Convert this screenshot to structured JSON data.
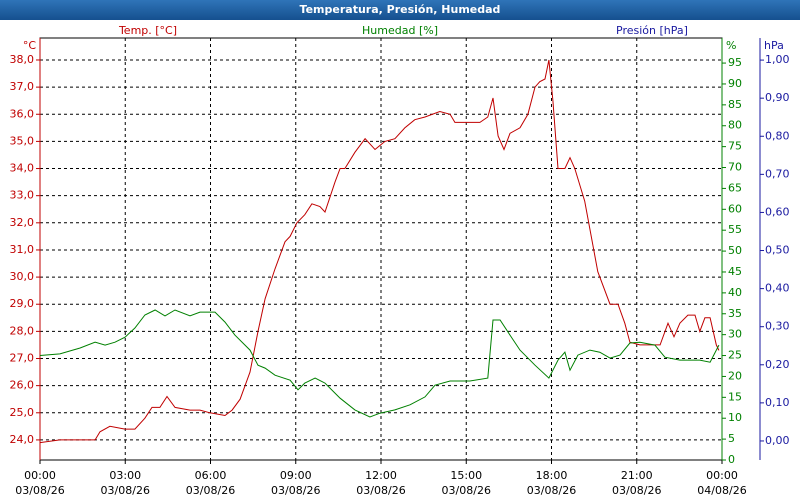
{
  "chart_data": {
    "type": "line",
    "title": "Temperatura, Presión, Humedad",
    "yunit": "°C",
    "y2unit": "%",
    "y3unit": "hPa",
    "y3label": "Presión [hPa]",
    "y3color": "#1a1aa0",
    "xlim": [
      0,
      24
    ],
    "xticks": [
      {
        "value": 0,
        "label": "00:00",
        "date": "03/08/26"
      },
      {
        "value": 3,
        "label": "03:00",
        "date": "03/08/26"
      },
      {
        "value": 6,
        "label": "06:00",
        "date": "03/08/26"
      },
      {
        "value": 9,
        "label": "09:00",
        "date": "03/08/26"
      },
      {
        "value": 12,
        "label": "12:00",
        "date": "03/08/26"
      },
      {
        "value": 15,
        "label": "15:00",
        "date": "03/08/26"
      },
      {
        "value": 18,
        "label": "18:00",
        "date": "03/08/26"
      },
      {
        "value": 21,
        "label": "21:00",
        "date": "03/08/26"
      },
      {
        "value": 24,
        "label": "00:00",
        "date": "04/08/26"
      }
    ],
    "ylim": [
      23.26,
      38.81
    ],
    "yticks": [
      {
        "value": 24,
        "label": "24,0"
      },
      {
        "value": 25,
        "label": "25,0"
      },
      {
        "value": 26,
        "label": "26,0"
      },
      {
        "value": 27,
        "label": "27,0"
      },
      {
        "value": 28,
        "label": "28,0"
      },
      {
        "value": 29,
        "label": "29,0"
      },
      {
        "value": 30,
        "label": "30,0"
      },
      {
        "value": 31,
        "label": "31,0"
      },
      {
        "value": 32,
        "label": "32,0"
      },
      {
        "value": 33,
        "label": "33,0"
      },
      {
        "value": 34,
        "label": "34,0"
      },
      {
        "value": 35,
        "label": "35,0"
      },
      {
        "value": 36,
        "label": "36,0"
      },
      {
        "value": 37,
        "label": "37,0"
      },
      {
        "value": 38,
        "label": "38,0"
      }
    ],
    "y2lim": [
      0,
      101
    ],
    "y2ticks": [
      0,
      5,
      10,
      15,
      20,
      25,
      30,
      35,
      40,
      45,
      50,
      55,
      60,
      65,
      70,
      75,
      80,
      85,
      90,
      95
    ],
    "y3lim": [
      -0.05,
      1.058
    ],
    "y3ticks": [
      {
        "value": 0,
        "label": "0,00"
      },
      {
        "value": 0.1,
        "label": "0,10"
      },
      {
        "value": 0.2,
        "label": "0,20"
      },
      {
        "value": 0.3,
        "label": "0,30"
      },
      {
        "value": 0.4,
        "label": "0,40"
      },
      {
        "value": 0.5,
        "label": "0,50"
      },
      {
        "value": 0.6,
        "label": "0,60"
      },
      {
        "value": 0.7,
        "label": "0,70"
      },
      {
        "value": 0.8,
        "label": "0,80"
      },
      {
        "value": 0.9,
        "label": "0,90"
      },
      {
        "value": 1,
        "label": "1,00"
      }
    ],
    "grid": true,
    "series": [
      {
        "name": "Temp. [°C]",
        "color": "#c00000",
        "axis": "y",
        "x": [
          0,
          0.7,
          1.94,
          2.11,
          2.46,
          2.99,
          3.34,
          3.69,
          3.94,
          4.22,
          4.47,
          4.75,
          5.28,
          5.63,
          5.98,
          6.51,
          6.76,
          7.04,
          7.39,
          7.67,
          7.92,
          8.27,
          8.62,
          8.8,
          9.04,
          9.32,
          9.57,
          9.85,
          10.03,
          10.38,
          10.56,
          10.73,
          11.08,
          11.44,
          11.79,
          12.14,
          12.49,
          12.84,
          13.19,
          13.55,
          14.07,
          14.43,
          14.6,
          15.13,
          15.48,
          15.76,
          15.94,
          16.12,
          16.33,
          16.54,
          16.89,
          17.17,
          17.42,
          17.59,
          17.77,
          17.91,
          18.05,
          18.23,
          18.47,
          18.65,
          18.82,
          19.17,
          19.63,
          20.06,
          20.34,
          20.58,
          20.76,
          21.11,
          21.46,
          21.82,
          22.1,
          22.31,
          22.52,
          22.8,
          23.05,
          23.22,
          23.4,
          23.58,
          23.8,
          23.89
        ],
        "values": [
          23.9,
          24.0,
          24.0,
          24.3,
          24.5,
          24.4,
          24.4,
          24.8,
          25.2,
          25.2,
          25.6,
          25.2,
          25.1,
          25.1,
          25.0,
          24.9,
          25.1,
          25.5,
          26.5,
          28.0,
          29.2,
          30.3,
          31.3,
          31.5,
          32.0,
          32.3,
          32.7,
          32.6,
          32.4,
          33.5,
          34.0,
          34.0,
          34.6,
          35.1,
          34.7,
          35.0,
          35.1,
          35.5,
          35.8,
          35.9,
          36.1,
          36.0,
          35.7,
          35.7,
          35.7,
          35.9,
          36.6,
          35.2,
          34.7,
          35.3,
          35.5,
          36.0,
          37.0,
          37.2,
          37.3,
          38.0,
          36.5,
          34.0,
          34.0,
          34.4,
          34.0,
          32.8,
          30.2,
          29.0,
          29.0,
          28.3,
          27.6,
          27.5,
          27.5,
          27.5,
          28.3,
          27.8,
          28.3,
          28.6,
          28.6,
          28.0,
          28.5,
          28.5,
          27.5,
          27.3
        ]
      },
      {
        "name": "Humedad [%]",
        "color": "#008000",
        "axis": "y2",
        "x": [
          0,
          0.7,
          1.41,
          1.94,
          2.29,
          2.64,
          2.99,
          3.34,
          3.69,
          4.05,
          4.4,
          4.75,
          5.28,
          5.63,
          6.16,
          6.51,
          6.86,
          7.39,
          7.67,
          7.92,
          8.27,
          8.8,
          9.08,
          9.32,
          9.68,
          10.03,
          10.56,
          11.08,
          11.61,
          11.96,
          12.49,
          13.02,
          13.55,
          13.9,
          14.43,
          15.13,
          15.76,
          15.94,
          16.19,
          16.54,
          16.89,
          17.42,
          17.91,
          18.23,
          18.47,
          18.65,
          18.93,
          19.35,
          19.7,
          20.06,
          20.41,
          20.76,
          21.11,
          21.64,
          21.99,
          22.52,
          23.22,
          23.58,
          23.89
        ],
        "values": [
          25,
          25.4,
          26.8,
          28.2,
          27.5,
          28.2,
          29.4,
          31.6,
          34.7,
          35.9,
          34.5,
          35.9,
          34.5,
          35.4,
          35.4,
          33,
          29.9,
          26.3,
          22.7,
          22,
          20.3,
          19.1,
          16.8,
          18.4,
          19.6,
          18.4,
          14.8,
          12,
          10.3,
          11.2,
          12,
          13.2,
          15.1,
          17.9,
          18.9,
          18.9,
          19.6,
          33.5,
          33.5,
          29.9,
          26.3,
          22.7,
          19.6,
          23.9,
          25.8,
          21.5,
          25.1,
          26.3,
          25.8,
          24.4,
          25.1,
          28,
          28.2,
          27.5,
          24.6,
          23.9,
          23.9,
          23.4,
          27.5
        ]
      }
    ]
  }
}
